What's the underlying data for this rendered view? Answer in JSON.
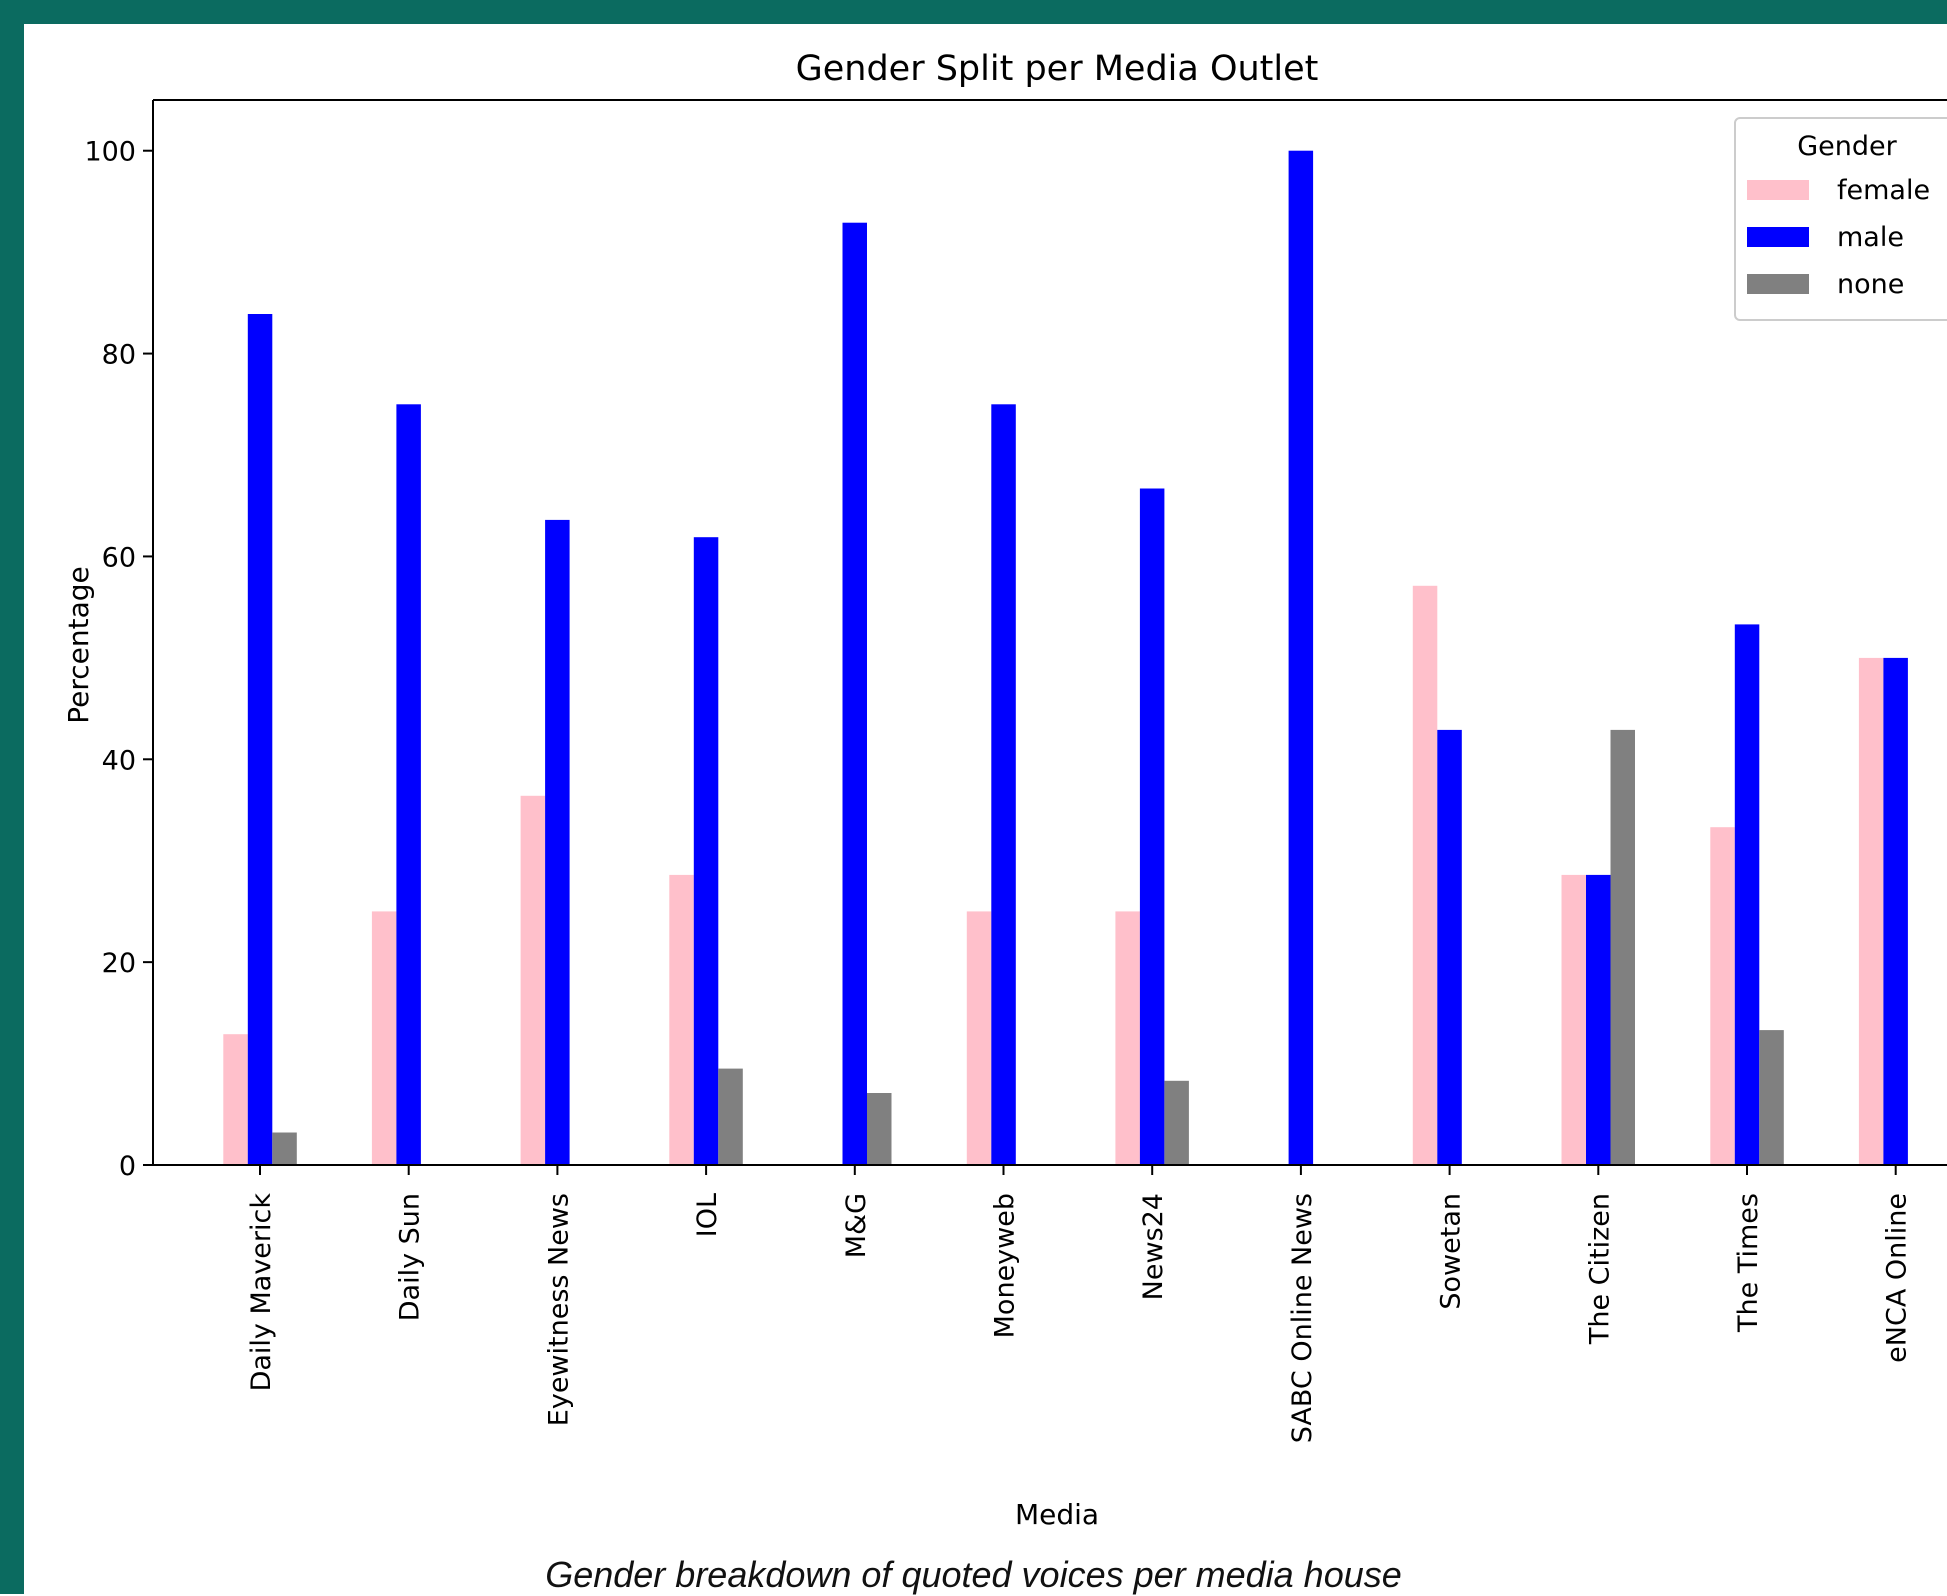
{
  "colors": {
    "frame": "#0b6b60"
  },
  "caption": "Gender breakdown of quoted voices per media house",
  "chart_data": {
    "type": "bar",
    "title": "Gender Split per Media Outlet",
    "xlabel": "Media",
    "ylabel": "Percentage",
    "ylim": [
      0,
      105
    ],
    "yticks": [
      0,
      20,
      40,
      60,
      80,
      100
    ],
    "grid": false,
    "legend": {
      "title": "Gender",
      "placement": "top-right"
    },
    "categories": [
      "Daily Maverick",
      "Daily Sun",
      "Eyewitness News",
      "IOL",
      "M&G",
      "Moneyweb",
      "News24",
      "SABC Online News",
      "Sowetan",
      "The Citizen",
      "The Times",
      "eNCA Online"
    ],
    "series": [
      {
        "name": "female",
        "color": "#ffc0cb",
        "values": [
          12.9,
          25.0,
          36.4,
          28.6,
          0,
          25.0,
          25.0,
          0,
          57.1,
          28.6,
          33.3,
          50.0
        ]
      },
      {
        "name": "male",
        "color": "#0000ff",
        "values": [
          83.9,
          75.0,
          63.6,
          61.9,
          92.9,
          75.0,
          66.7,
          100.0,
          42.9,
          28.6,
          53.3,
          50.0
        ]
      },
      {
        "name": "none",
        "color": "#808080",
        "values": [
          3.2,
          0,
          0,
          9.5,
          7.1,
          0,
          8.3,
          0,
          0,
          42.9,
          13.3,
          0
        ]
      }
    ]
  }
}
